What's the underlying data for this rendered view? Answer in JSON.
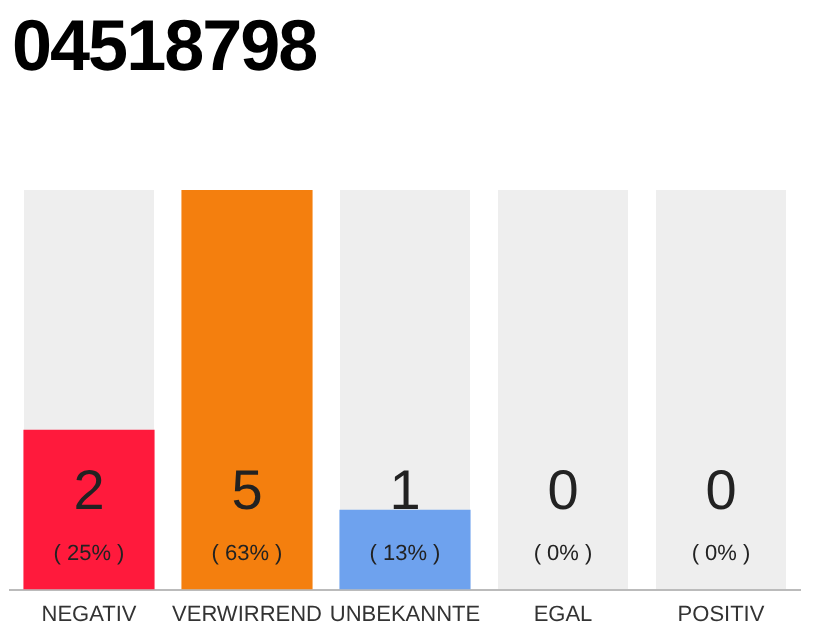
{
  "chart_data": {
    "type": "bar",
    "title": "04518798",
    "categories": [
      "NEGATIV",
      "VERWIRREND",
      "UNBEKANNTE",
      "EGAL",
      "POSITIV"
    ],
    "values": [
      2,
      5,
      1,
      0,
      0
    ],
    "colors": [
      "#ff1a3c",
      "#f47f0e",
      "#6ea2ee",
      "#dddddd",
      "#dddddd"
    ],
    "value_labels": [
      "2",
      "5",
      "1",
      "0",
      "0"
    ],
    "annotations": [
      "( 25% )",
      "( 63% )",
      "( 13% )",
      "( 0% )",
      "( 0% )"
    ],
    "grid": false,
    "legend": false
  }
}
